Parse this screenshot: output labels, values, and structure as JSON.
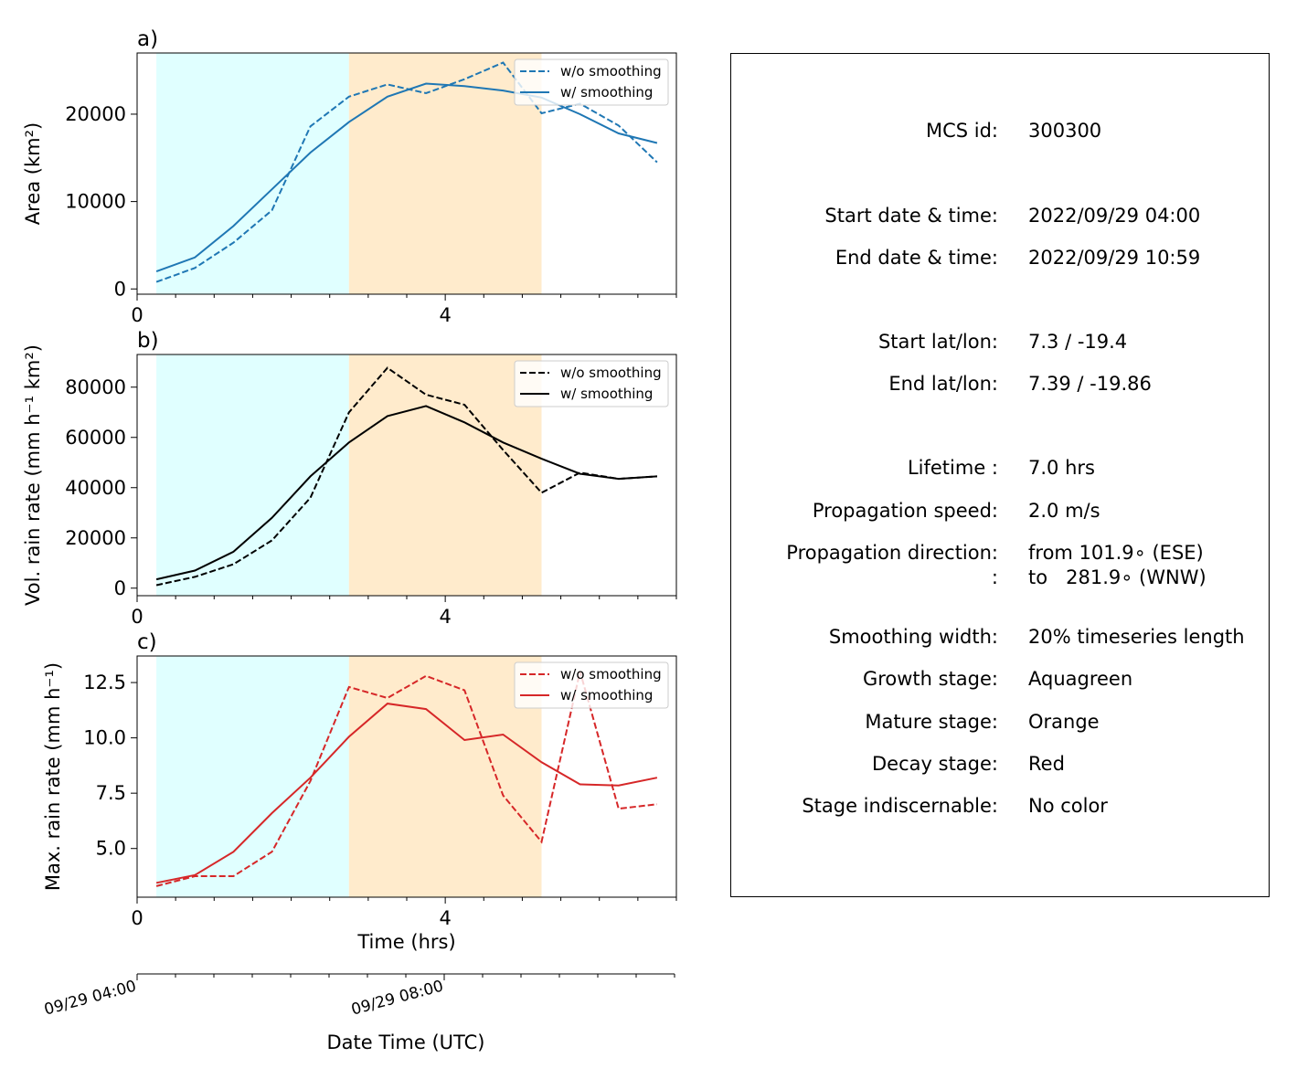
{
  "chart_data": [
    {
      "panel": "a)",
      "type": "line",
      "ylabel": "Area  (km²)",
      "ylim": [
        -600,
        27000
      ],
      "xlim": [
        0,
        7
      ],
      "x_ticks": [
        0,
        4
      ],
      "y_ticks": [
        0,
        10000,
        20000
      ],
      "y_tick_labels": [
        "0",
        "10000",
        "20000"
      ],
      "color": "#1f77b4",
      "series": [
        {
          "name": "w/o smoothing",
          "style": "dashed",
          "x": [
            0.25,
            0.75,
            1.25,
            1.75,
            2.25,
            2.75,
            3.25,
            3.75,
            4.25,
            4.75,
            5.25,
            5.75,
            6.25,
            6.75
          ],
          "values": [
            800,
            2400,
            5300,
            9000,
            18600,
            22000,
            23400,
            22400,
            24000,
            25900,
            20100,
            21200,
            18700,
            14500
          ]
        },
        {
          "name": "w/ smoothing",
          "style": "solid",
          "x": [
            0.25,
            0.75,
            1.25,
            1.75,
            2.25,
            2.75,
            3.25,
            3.75,
            4.25,
            4.75,
            5.25,
            5.75,
            6.25,
            6.75
          ],
          "values": [
            2000,
            3600,
            7200,
            11400,
            15600,
            19100,
            22000,
            23500,
            23200,
            22700,
            21900,
            20000,
            17800,
            16700
          ]
        }
      ]
    },
    {
      "panel": "b)",
      "type": "line",
      "ylabel": "Vol. rain rate (mm h⁻¹ km²)",
      "ylim": [
        -3000,
        93000
      ],
      "xlim": [
        0,
        7
      ],
      "x_ticks": [
        0,
        4
      ],
      "y_ticks": [
        0,
        20000,
        40000,
        60000,
        80000
      ],
      "y_tick_labels": [
        "0",
        "20000",
        "40000",
        "60000",
        "80000"
      ],
      "color": "#000000",
      "series": [
        {
          "name": "w/o smoothing",
          "style": "dashed",
          "x": [
            0.25,
            0.75,
            1.25,
            1.75,
            2.25,
            2.75,
            3.25,
            3.75,
            4.25,
            4.75,
            5.25,
            5.75,
            6.25,
            6.75
          ],
          "values": [
            1200,
            4500,
            9500,
            19000,
            36000,
            70000,
            87700,
            77000,
            73000,
            55000,
            38000,
            46000,
            43500,
            44500
          ]
        },
        {
          "name": "w/ smoothing",
          "style": "solid",
          "x": [
            0.25,
            0.75,
            1.25,
            1.75,
            2.25,
            2.75,
            3.25,
            3.75,
            4.25,
            4.75,
            5.25,
            5.75,
            6.25,
            6.75
          ],
          "values": [
            3500,
            7000,
            14500,
            28000,
            44500,
            58000,
            68500,
            72500,
            66000,
            58000,
            51500,
            45500,
            43500,
            44500
          ]
        }
      ]
    },
    {
      "panel": "c)",
      "type": "line",
      "ylabel": "Max. rain rate  (mm h⁻¹)",
      "xlabel": "Time (hrs)",
      "ylim": [
        2.8,
        13.7
      ],
      "xlim": [
        0,
        7
      ],
      "x_ticks": [
        0,
        4
      ],
      "y_ticks": [
        5.0,
        7.5,
        10.0,
        12.5
      ],
      "y_tick_labels": [
        "5.0",
        "7.5",
        "10.0",
        "12.5"
      ],
      "color": "#d62728",
      "series": [
        {
          "name": "w/o smoothing",
          "style": "dashed",
          "x": [
            0.25,
            0.75,
            1.25,
            1.75,
            2.25,
            2.75,
            3.25,
            3.75,
            4.25,
            4.75,
            5.25,
            5.75,
            6.25,
            6.75
          ],
          "values": [
            3.3,
            3.75,
            3.75,
            4.85,
            8.05,
            12.3,
            11.8,
            12.8,
            12.15,
            7.4,
            5.3,
            13.0,
            6.8,
            7.0
          ]
        },
        {
          "name": "w/ smoothing",
          "style": "solid",
          "x": [
            0.25,
            0.75,
            1.25,
            1.75,
            2.25,
            2.75,
            3.25,
            3.75,
            4.25,
            4.75,
            5.25,
            5.75,
            6.25,
            6.75
          ],
          "values": [
            3.45,
            3.8,
            4.85,
            6.6,
            8.2,
            10.05,
            11.55,
            11.3,
            9.9,
            10.15,
            8.9,
            7.9,
            7.85,
            8.2
          ]
        }
      ]
    }
  ],
  "stages": {
    "growth": {
      "x_range": [
        0.25,
        2.75
      ],
      "color": "#e0ffff"
    },
    "mature": {
      "x_range": [
        2.75,
        5.25
      ],
      "color": "#ffebcc"
    }
  },
  "datetime_axis": {
    "xlabel": "Date Time (UTC)",
    "ticks": [
      {
        "x": 0,
        "label": "09/29 04:00"
      },
      {
        "x": 4,
        "label": "09/29 08:00"
      }
    ]
  },
  "info_panel": {
    "rows": [
      {
        "label": "MCS id:",
        "value": "300300"
      },
      {
        "label": "Start date & time:",
        "value": "2022/09/29 04:00"
      },
      {
        "label": "End date & time:",
        "value": "2022/09/29 10:59"
      },
      {
        "label": "Start lat/lon:",
        "value": "7.3 / -19.4"
      },
      {
        "label": "End lat/lon:",
        "value": "7.39 / -19.86"
      },
      {
        "label": "Lifetime :",
        "value": "7.0 hrs"
      },
      {
        "label": "Propagation speed:",
        "value": "2.0 m/s"
      },
      {
        "label": "Propagation direction:",
        "value": "from 101.9∘ (ESE)"
      },
      {
        "label": ":",
        "value": "to   281.9∘ (WNW)"
      },
      {
        "label": "Smoothing width:",
        "value": "20% timeseries length"
      },
      {
        "label": "Growth stage:",
        "value": "Aquagreen"
      },
      {
        "label": "Mature stage:",
        "value": "Orange"
      },
      {
        "label": "Decay stage:",
        "value": "Red"
      },
      {
        "label": "Stage indiscernable:",
        "value": "No color"
      }
    ]
  }
}
